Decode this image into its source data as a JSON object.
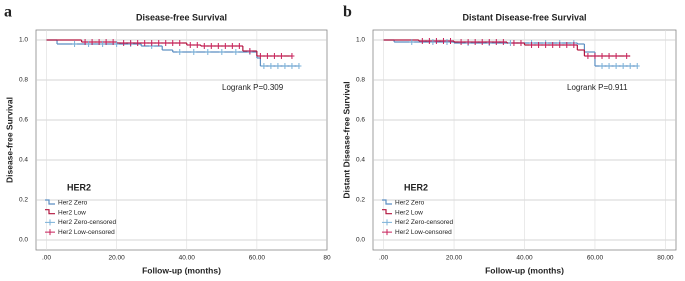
{
  "chart_data": [
    {
      "type": "step",
      "panel_label": "a",
      "title": "Disease-free Survival",
      "x_label": "Follow-up (months)",
      "y_label": "Disease-free Survival",
      "legend_title": "HER2",
      "annotation": "Logrank P=0.309",
      "grid": true,
      "xlim": [
        -3,
        80
      ],
      "xticks": [
        {
          "value": 0,
          "label": ".00"
        },
        {
          "value": 20,
          "label": "20.00"
        },
        {
          "value": 40,
          "label": "40.00"
        },
        {
          "value": 60,
          "label": "60.00"
        },
        80
      ],
      "ylim": [
        -0.05,
        1.05
      ],
      "yticks": [
        {
          "value": 0,
          "label": "0.0"
        },
        0.2,
        0.4,
        0.6,
        0.8,
        {
          "value": 1,
          "label": "1.0"
        }
      ],
      "series": [
        {
          "name": "Her2 Zero",
          "kind": "step",
          "color": "#5b8ec2",
          "x": [
            0,
            3,
            27,
            33,
            36,
            60,
            61,
            72
          ],
          "values": [
            1.0,
            0.98,
            0.97,
            0.95,
            0.94,
            0.91,
            0.87,
            0.87
          ]
        },
        {
          "name": "Her2 Low",
          "kind": "step",
          "color": "#b2163f",
          "x": [
            0,
            10,
            20,
            40,
            44,
            56,
            60,
            70
          ],
          "values": [
            1.0,
            0.99,
            0.985,
            0.975,
            0.97,
            0.945,
            0.92,
            0.92
          ]
        },
        {
          "name": "Her2 Zero-censored",
          "kind": "censored",
          "color": "#7ab0d8",
          "x": [
            8,
            12,
            16,
            20,
            24,
            30,
            38,
            42,
            46,
            50,
            54,
            58,
            62,
            64,
            66,
            68,
            70,
            72
          ],
          "values": [
            0.98,
            0.98,
            0.98,
            0.98,
            0.98,
            0.97,
            0.94,
            0.94,
            0.94,
            0.94,
            0.94,
            0.94,
            0.87,
            0.87,
            0.87,
            0.87,
            0.87,
            0.87
          ]
        },
        {
          "name": "Her2 Low-censored",
          "kind": "censored",
          "color": "#c8205a",
          "x": [
            11,
            13,
            15,
            17,
            19,
            22,
            24,
            26,
            28,
            30,
            32,
            34,
            36,
            38,
            41,
            43,
            45,
            47,
            49,
            51,
            53,
            55,
            58,
            61,
            63,
            65,
            67,
            70
          ],
          "values": [
            0.99,
            0.99,
            0.99,
            0.99,
            0.99,
            0.985,
            0.985,
            0.985,
            0.985,
            0.985,
            0.985,
            0.985,
            0.985,
            0.985,
            0.975,
            0.975,
            0.97,
            0.97,
            0.97,
            0.97,
            0.97,
            0.97,
            0.945,
            0.92,
            0.92,
            0.92,
            0.92,
            0.92
          ]
        }
      ]
    },
    {
      "type": "step",
      "panel_label": "b",
      "title": "Distant Disease-free Survival",
      "x_label": "Follow-up (months)",
      "y_label": "Distant Disease-free Survival",
      "legend_title": "HER2",
      "annotation": "Logrank P=0.911",
      "grid": true,
      "xlim": [
        -3,
        83
      ],
      "xticks": [
        {
          "value": 0,
          "label": ".00"
        },
        {
          "value": 20,
          "label": "20.00"
        },
        {
          "value": 40,
          "label": "40.00"
        },
        {
          "value": 60,
          "label": "60.00"
        },
        {
          "value": 80,
          "label": "80.00"
        }
      ],
      "ylim": [
        -0.05,
        1.05
      ],
      "yticks": [
        {
          "value": 0,
          "label": "0.0"
        },
        0.2,
        0.4,
        0.6,
        0.8,
        {
          "value": 1,
          "label": "1.0"
        }
      ],
      "series": [
        {
          "name": "Her2 Zero",
          "kind": "step",
          "color": "#5b8ec2",
          "x": [
            0,
            3,
            20,
            55,
            57,
            60,
            72
          ],
          "values": [
            1.0,
            0.99,
            0.985,
            0.98,
            0.94,
            0.87,
            0.87
          ]
        },
        {
          "name": "Her2 Low",
          "kind": "step",
          "color": "#b2163f",
          "x": [
            0,
            10,
            20,
            35,
            40,
            55,
            57,
            70
          ],
          "values": [
            1.0,
            0.995,
            0.99,
            0.985,
            0.975,
            0.95,
            0.92,
            0.92
          ]
        },
        {
          "name": "Her2 Zero-censored",
          "kind": "censored",
          "color": "#7ab0d8",
          "x": [
            8,
            14,
            18,
            24,
            30,
            36,
            42,
            46,
            50,
            54,
            62,
            64,
            66,
            68,
            70,
            72
          ],
          "values": [
            0.99,
            0.99,
            0.99,
            0.985,
            0.985,
            0.985,
            0.985,
            0.985,
            0.985,
            0.985,
            0.87,
            0.87,
            0.87,
            0.87,
            0.87,
            0.87
          ]
        },
        {
          "name": "Her2 Low-censored",
          "kind": "censored",
          "color": "#c8205a",
          "x": [
            11,
            13,
            15,
            17,
            19,
            22,
            24,
            26,
            28,
            30,
            32,
            34,
            37,
            39,
            42,
            44,
            46,
            48,
            50,
            52,
            54,
            58,
            60,
            62,
            64,
            66,
            69
          ],
          "values": [
            0.995,
            0.995,
            0.995,
            0.995,
            0.995,
            0.99,
            0.99,
            0.99,
            0.99,
            0.99,
            0.99,
            0.99,
            0.985,
            0.985,
            0.975,
            0.975,
            0.975,
            0.975,
            0.975,
            0.975,
            0.975,
            0.92,
            0.92,
            0.92,
            0.92,
            0.92,
            0.92
          ]
        }
      ]
    }
  ]
}
